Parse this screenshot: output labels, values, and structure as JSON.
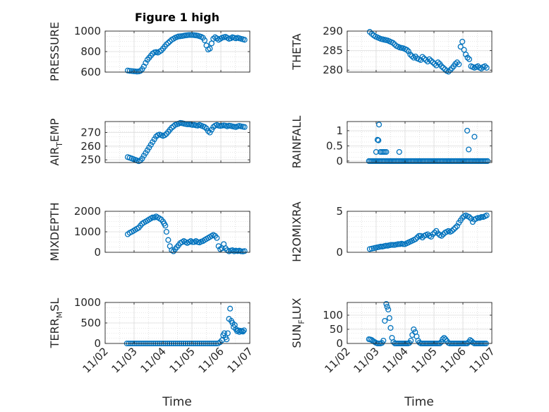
{
  "figure_title": "Figure 1 high",
  "marker_color": "#0072bd",
  "chart_data": [
    {
      "type": "scatter",
      "ylabel": "PRESSURE",
      "ylim": [
        600,
        1000
      ],
      "yticks": [
        600,
        800,
        1000
      ],
      "xlim": [
        0,
        5
      ],
      "xtick_labels": [
        "11/02",
        "11/03",
        "11/04",
        "11/05",
        "11/06",
        "11/07"
      ],
      "grid": true,
      "x": [
        0.78,
        0.85,
        0.92,
        0.98,
        1.04,
        1.1,
        1.16,
        1.22,
        1.28,
        1.34,
        1.4,
        1.46,
        1.52,
        1.58,
        1.64,
        1.7,
        1.76,
        1.82,
        1.88,
        1.94,
        2.0,
        2.06,
        2.12,
        2.18,
        2.24,
        2.3,
        2.36,
        2.42,
        2.48,
        2.54,
        2.6,
        2.66,
        2.72,
        2.78,
        2.84,
        2.9,
        2.96,
        3.02,
        3.08,
        3.14,
        3.2,
        3.26,
        3.32,
        3.38,
        3.44,
        3.5,
        3.56,
        3.62,
        3.68,
        3.74,
        3.8,
        3.86,
        3.92,
        3.98,
        4.04,
        4.1,
        4.16,
        4.22,
        4.28,
        4.34,
        4.4,
        4.46,
        4.52,
        4.58,
        4.64,
        4.7,
        4.76,
        4.82
      ],
      "y": [
        615,
        612,
        610,
        608,
        607,
        605,
        606,
        612,
        630,
        655,
        690,
        720,
        740,
        760,
        780,
        792,
        795,
        790,
        800,
        810,
        830,
        850,
        870,
        885,
        900,
        915,
        925,
        935,
        942,
        948,
        950,
        952,
        955,
        958,
        960,
        962,
        962,
        962,
        960,
        958,
        955,
        950,
        945,
        935,
        910,
        860,
        820,
        830,
        880,
        925,
        940,
        930,
        915,
        925,
        935,
        940,
        945,
        935,
        925,
        930,
        940,
        935,
        930,
        935,
        930,
        925,
        920,
        915
      ]
    },
    {
      "type": "scatter",
      "ylabel": "THETA",
      "ylim": [
        279.5,
        290
      ],
      "yticks": [
        280,
        285,
        290
      ],
      "xlim": [
        0,
        5
      ],
      "xtick_labels": [
        "11/02",
        "11/03",
        "11/04",
        "11/05",
        "11/06",
        "11/07"
      ],
      "grid": true,
      "x": [
        0.78,
        0.85,
        0.92,
        0.98,
        1.04,
        1.1,
        1.16,
        1.22,
        1.28,
        1.34,
        1.4,
        1.46,
        1.52,
        1.58,
        1.64,
        1.7,
        1.76,
        1.82,
        1.88,
        1.94,
        2.0,
        2.06,
        2.12,
        2.18,
        2.24,
        2.3,
        2.36,
        2.42,
        2.48,
        2.54,
        2.6,
        2.66,
        2.72,
        2.78,
        2.84,
        2.9,
        2.96,
        3.02,
        3.08,
        3.14,
        3.2,
        3.26,
        3.32,
        3.38,
        3.44,
        3.5,
        3.56,
        3.62,
        3.68,
        3.74,
        3.8,
        3.86,
        3.92,
        3.98,
        4.04,
        4.1,
        4.16,
        4.22,
        4.28,
        4.34,
        4.4,
        4.46,
        4.52,
        4.58,
        4.64,
        4.7,
        4.76,
        4.82
      ],
      "y": [
        289.8,
        289.3,
        288.9,
        288.6,
        288.4,
        288.2,
        288.0,
        287.9,
        287.8,
        287.7,
        287.6,
        287.4,
        287.2,
        287.0,
        286.6,
        286.2,
        286.0,
        285.8,
        285.7,
        285.6,
        285.4,
        285.2,
        284.8,
        284.0,
        283.6,
        283.2,
        283.5,
        283.0,
        282.8,
        282.6,
        283.4,
        283.0,
        282.6,
        282.2,
        282.8,
        282.4,
        282.0,
        281.6,
        281.2,
        282.0,
        281.6,
        281.0,
        280.6,
        280.2,
        279.8,
        279.6,
        280.0,
        280.5,
        281.0,
        281.6,
        282.0,
        281.5,
        286.0,
        287.3,
        285.2,
        284.0,
        283.2,
        282.8,
        281.0,
        280.8,
        280.6,
        280.8,
        281.0,
        280.6,
        280.4,
        280.8,
        281.0,
        280.6
      ]
    },
    {
      "type": "scatter",
      "ylabel": "AIR_TEMP",
      "ylim": [
        248,
        278
      ],
      "yticks": [
        250,
        260,
        270
      ],
      "xlim": [
        0,
        5
      ],
      "xtick_labels": [
        "11/02",
        "11/03",
        "11/04",
        "11/05",
        "11/06",
        "11/07"
      ],
      "grid": true,
      "x": [
        0.78,
        0.85,
        0.92,
        0.98,
        1.04,
        1.1,
        1.16,
        1.22,
        1.28,
        1.34,
        1.4,
        1.46,
        1.52,
        1.58,
        1.64,
        1.7,
        1.76,
        1.82,
        1.88,
        1.94,
        2.0,
        2.06,
        2.12,
        2.18,
        2.24,
        2.3,
        2.36,
        2.42,
        2.48,
        2.54,
        2.6,
        2.66,
        2.72,
        2.78,
        2.84,
        2.9,
        2.96,
        3.02,
        3.08,
        3.14,
        3.2,
        3.26,
        3.32,
        3.38,
        3.44,
        3.5,
        3.56,
        3.62,
        3.68,
        3.74,
        3.8,
        3.86,
        3.92,
        3.98,
        4.04,
        4.1,
        4.16,
        4.22,
        4.28,
        4.34,
        4.4,
        4.46,
        4.52,
        4.58,
        4.64,
        4.7,
        4.76,
        4.82
      ],
      "y": [
        252,
        251.5,
        251,
        250.5,
        250,
        249.5,
        249,
        249.5,
        251,
        253,
        255,
        257,
        259,
        261,
        263,
        265,
        267,
        268,
        268.5,
        268,
        267.5,
        268,
        269,
        270.5,
        272,
        273.5,
        274.5,
        275.5,
        276,
        276.5,
        277,
        276.8,
        276.5,
        276.2,
        276,
        276,
        275.8,
        275.5,
        275.5,
        275.2,
        275,
        275.5,
        275,
        274.5,
        274,
        273,
        271,
        270,
        272,
        274,
        275,
        275.5,
        275,
        274.8,
        275,
        275.2,
        275,
        274.5,
        275,
        274.8,
        274.5,
        274.2,
        274,
        274.5,
        274.8,
        274.5,
        274.2,
        274
      ]
    },
    {
      "type": "scatter",
      "ylabel": "RAINFALL",
      "ylim": [
        -0.05,
        1.3
      ],
      "yticks": [
        0,
        0.5,
        1
      ],
      "ytick_labels": [
        "0",
        "0.5",
        "1"
      ],
      "xlim": [
        0,
        5
      ],
      "xtick_labels": [
        "11/02",
        "11/03",
        "11/04",
        "11/05",
        "11/06",
        "11/07"
      ],
      "grid": true,
      "x": [
        0.75,
        0.8,
        0.85,
        0.9,
        0.95,
        1.0,
        1.05,
        1.1,
        1.15,
        1.2,
        1.25,
        1.3,
        1.35,
        1.4,
        1.45,
        1.5,
        1.55,
        1.6,
        1.65,
        1.7,
        1.75,
        1.8,
        1.85,
        1.9,
        1.95,
        2.0,
        2.05,
        2.1,
        2.15,
        2.2,
        2.25,
        2.3,
        2.35,
        2.4,
        2.45,
        2.5,
        2.55,
        2.6,
        2.65,
        2.7,
        2.75,
        2.8,
        2.85,
        2.9,
        2.95,
        3.0,
        3.05,
        3.1,
        3.15,
        3.2,
        3.25,
        3.3,
        3.35,
        3.4,
        3.45,
        3.5,
        3.55,
        3.6,
        3.65,
        3.7,
        3.75,
        3.8,
        3.85,
        3.9,
        3.95,
        4.0,
        4.05,
        4.1,
        4.15,
        4.2,
        4.25,
        4.3,
        4.35,
        4.4,
        4.45,
        4.5,
        4.55,
        4.6,
        4.65,
        4.7,
        4.75,
        4.8,
        4.85,
        1.0,
        1.05,
        1.08,
        1.1,
        1.15,
        1.2,
        1.25,
        1.3,
        1.35,
        1.8,
        4.15,
        4.2,
        4.4
      ],
      "y": [
        0,
        0,
        0,
        0,
        0,
        0,
        0,
        0,
        0,
        0,
        0,
        0,
        0,
        0,
        0,
        0,
        0,
        0,
        0,
        0,
        0,
        0,
        0,
        0,
        0,
        0,
        0,
        0,
        0,
        0,
        0,
        0,
        0,
        0,
        0,
        0,
        0,
        0,
        0,
        0,
        0,
        0,
        0,
        0,
        0,
        0,
        0,
        0,
        0,
        0,
        0,
        0,
        0,
        0,
        0,
        0,
        0,
        0,
        0,
        0,
        0,
        0,
        0,
        0,
        0,
        0,
        0,
        0,
        0,
        0,
        0,
        0,
        0,
        0,
        0,
        0,
        0,
        0,
        0,
        0,
        0,
        0,
        0,
        0.3,
        0.7,
        0.68,
        1.2,
        0.3,
        0.3,
        0.3,
        0.3,
        0.3,
        0.3,
        1.0,
        0.38,
        0.8
      ]
    },
    {
      "type": "scatter",
      "ylabel": "MIXDEPTH",
      "ylim": [
        0,
        2000
      ],
      "yticks": [
        0,
        1000,
        2000
      ],
      "xlim": [
        0,
        5
      ],
      "xtick_labels": [
        "11/02",
        "11/03",
        "11/04",
        "11/05",
        "11/06",
        "11/07"
      ],
      "grid": true,
      "x": [
        0.78,
        0.85,
        0.92,
        0.98,
        1.04,
        1.1,
        1.16,
        1.22,
        1.28,
        1.34,
        1.4,
        1.46,
        1.52,
        1.58,
        1.64,
        1.7,
        1.76,
        1.82,
        1.88,
        1.94,
        2.0,
        2.04,
        2.08,
        2.12,
        2.18,
        2.24,
        2.3,
        2.36,
        2.42,
        2.48,
        2.54,
        2.6,
        2.66,
        2.72,
        2.78,
        2.84,
        2.9,
        2.96,
        3.02,
        3.08,
        3.14,
        3.2,
        3.26,
        3.32,
        3.38,
        3.44,
        3.5,
        3.56,
        3.62,
        3.68,
        3.74,
        3.8,
        3.86,
        3.92,
        3.98,
        4.04,
        4.1,
        4.16,
        4.22,
        4.28,
        4.34,
        4.4,
        4.46,
        4.52,
        4.58,
        4.64,
        4.7,
        4.76,
        4.82
      ],
      "y": [
        880,
        950,
        1000,
        1050,
        1100,
        1150,
        1200,
        1300,
        1400,
        1450,
        1500,
        1550,
        1600,
        1650,
        1700,
        1700,
        1750,
        1700,
        1650,
        1600,
        1500,
        1400,
        1300,
        1000,
        600,
        300,
        100,
        50,
        150,
        250,
        350,
        450,
        500,
        550,
        500,
        450,
        500,
        550,
        500,
        500,
        550,
        500,
        480,
        520,
        550,
        600,
        650,
        700,
        750,
        800,
        850,
        800,
        700,
        300,
        150,
        200,
        400,
        200,
        100,
        50,
        80,
        100,
        50,
        80,
        60,
        80,
        50,
        40,
        60
      ]
    },
    {
      "type": "scatter",
      "ylabel": "H2OMIXRA",
      "ylim": [
        0,
        5
      ],
      "yticks": [
        0,
        5
      ],
      "xlim": [
        0,
        5
      ],
      "xtick_labels": [
        "11/02",
        "11/03",
        "11/04",
        "11/05",
        "11/06",
        "11/07"
      ],
      "grid": true,
      "x": [
        0.78,
        0.85,
        0.92,
        0.98,
        1.04,
        1.1,
        1.16,
        1.22,
        1.28,
        1.34,
        1.4,
        1.46,
        1.52,
        1.58,
        1.64,
        1.7,
        1.76,
        1.82,
        1.88,
        1.94,
        2.0,
        2.06,
        2.12,
        2.18,
        2.24,
        2.3,
        2.36,
        2.42,
        2.48,
        2.54,
        2.6,
        2.66,
        2.72,
        2.78,
        2.84,
        2.9,
        2.96,
        3.02,
        3.08,
        3.14,
        3.2,
        3.26,
        3.32,
        3.38,
        3.44,
        3.5,
        3.56,
        3.62,
        3.68,
        3.74,
        3.8,
        3.86,
        3.92,
        3.98,
        4.04,
        4.1,
        4.16,
        4.22,
        4.28,
        4.34,
        4.4,
        4.46,
        4.52,
        4.58,
        4.64,
        4.7,
        4.76,
        4.82
      ],
      "y": [
        0.4,
        0.45,
        0.5,
        0.55,
        0.6,
        0.65,
        0.7,
        0.7,
        0.75,
        0.8,
        0.8,
        0.85,
        0.9,
        0.9,
        0.9,
        0.95,
        1.0,
        1.0,
        1.05,
        1.0,
        1.0,
        1.1,
        1.2,
        1.3,
        1.4,
        1.5,
        1.6,
        1.8,
        2.0,
        2.0,
        1.8,
        2.0,
        2.1,
        2.2,
        2.0,
        1.9,
        2.2,
        2.4,
        2.6,
        2.3,
        2.1,
        2.0,
        2.2,
        2.4,
        2.5,
        2.6,
        2.5,
        2.6,
        2.8,
        3.0,
        3.2,
        3.6,
        3.9,
        4.2,
        4.4,
        4.5,
        4.4,
        4.3,
        4.1,
        3.7,
        4.0,
        4.1,
        4.2,
        4.2,
        4.3,
        4.3,
        4.4,
        4.5
      ]
    },
    {
      "type": "scatter",
      "ylabel": "TERR_MSL",
      "ylim": [
        0,
        1000
      ],
      "yticks": [
        0,
        500,
        1000
      ],
      "xlim": [
        0,
        5
      ],
      "xtick_labels": [
        "11/02",
        "11/03",
        "11/04",
        "11/05",
        "11/06",
        "11/07"
      ],
      "grid": true,
      "x": [
        0.75,
        0.82,
        0.89,
        0.96,
        1.03,
        1.1,
        1.17,
        1.24,
        1.31,
        1.38,
        1.45,
        1.52,
        1.59,
        1.66,
        1.73,
        1.8,
        1.87,
        1.94,
        2.01,
        2.08,
        2.15,
        2.22,
        2.29,
        2.36,
        2.43,
        2.5,
        2.57,
        2.64,
        2.71,
        2.78,
        2.85,
        2.92,
        2.99,
        3.06,
        3.13,
        3.2,
        3.27,
        3.34,
        3.41,
        3.48,
        3.55,
        3.62,
        3.69,
        3.76,
        3.83,
        3.9,
        3.97,
        4.04,
        4.08,
        4.12,
        4.16,
        4.2,
        4.24,
        4.28,
        4.32,
        4.36,
        4.4,
        4.44,
        4.48,
        4.52,
        4.56,
        4.6,
        4.64,
        4.68,
        4.72,
        4.76,
        4.8
      ],
      "y": [
        0,
        0,
        0,
        0,
        0,
        0,
        0,
        0,
        0,
        0,
        0,
        0,
        0,
        0,
        0,
        0,
        0,
        0,
        0,
        0,
        0,
        0,
        0,
        0,
        0,
        0,
        0,
        0,
        0,
        0,
        0,
        0,
        0,
        0,
        0,
        0,
        0,
        0,
        0,
        0,
        0,
        0,
        0,
        0,
        0,
        0,
        30,
        80,
        200,
        250,
        150,
        100,
        250,
        600,
        850,
        550,
        500,
        400,
        450,
        350,
        300,
        320,
        280,
        310,
        300,
        290,
        320
      ]
    },
    {
      "type": "scatter",
      "ylabel": "SUN_FLUX",
      "ylim": [
        0,
        145
      ],
      "yticks": [
        0,
        50,
        100
      ],
      "xlim": [
        0,
        5
      ],
      "xtick_labels": [
        "11/02",
        "11/03",
        "11/04",
        "11/05",
        "11/06",
        "11/07"
      ],
      "grid": true,
      "x": [
        0.75,
        0.8,
        0.85,
        0.9,
        0.95,
        1.0,
        1.05,
        1.1,
        1.15,
        1.2,
        1.25,
        1.3,
        1.35,
        1.38,
        1.42,
        1.46,
        1.5,
        1.55,
        1.6,
        1.65,
        1.7,
        1.75,
        1.8,
        1.85,
        1.9,
        1.95,
        2.0,
        2.05,
        2.1,
        2.15,
        2.2,
        2.25,
        2.3,
        2.35,
        2.4,
        2.45,
        2.5,
        2.55,
        2.6,
        2.65,
        2.7,
        2.75,
        2.8,
        2.85,
        2.9,
        2.95,
        3.0,
        3.05,
        3.1,
        3.15,
        3.2,
        3.25,
        3.3,
        3.35,
        3.4,
        3.45,
        3.5,
        3.55,
        3.6,
        3.65,
        3.7,
        3.75,
        3.8,
        3.85,
        3.9,
        3.95,
        4.0,
        4.05,
        4.1,
        4.15,
        4.2,
        4.25,
        4.3,
        4.35,
        4.4,
        4.45,
        4.5,
        4.55,
        4.6,
        4.65,
        4.7,
        4.75,
        4.8
      ],
      "y": [
        15,
        14,
        12,
        8,
        5,
        2,
        0,
        0,
        0,
        2,
        10,
        80,
        140,
        130,
        120,
        90,
        55,
        20,
        5,
        0,
        0,
        0,
        0,
        0,
        0,
        0,
        0,
        0,
        0,
        2,
        10,
        30,
        50,
        40,
        25,
        10,
        3,
        0,
        0,
        0,
        0,
        0,
        0,
        0,
        0,
        0,
        0,
        0,
        0,
        0,
        0,
        5,
        15,
        20,
        15,
        8,
        2,
        0,
        0,
        0,
        0,
        0,
        0,
        0,
        0,
        0,
        0,
        0,
        0,
        0,
        5,
        12,
        8,
        3,
        0,
        0,
        0,
        0,
        0,
        0,
        0,
        0,
        0
      ]
    }
  ],
  "xlabel": "Time"
}
